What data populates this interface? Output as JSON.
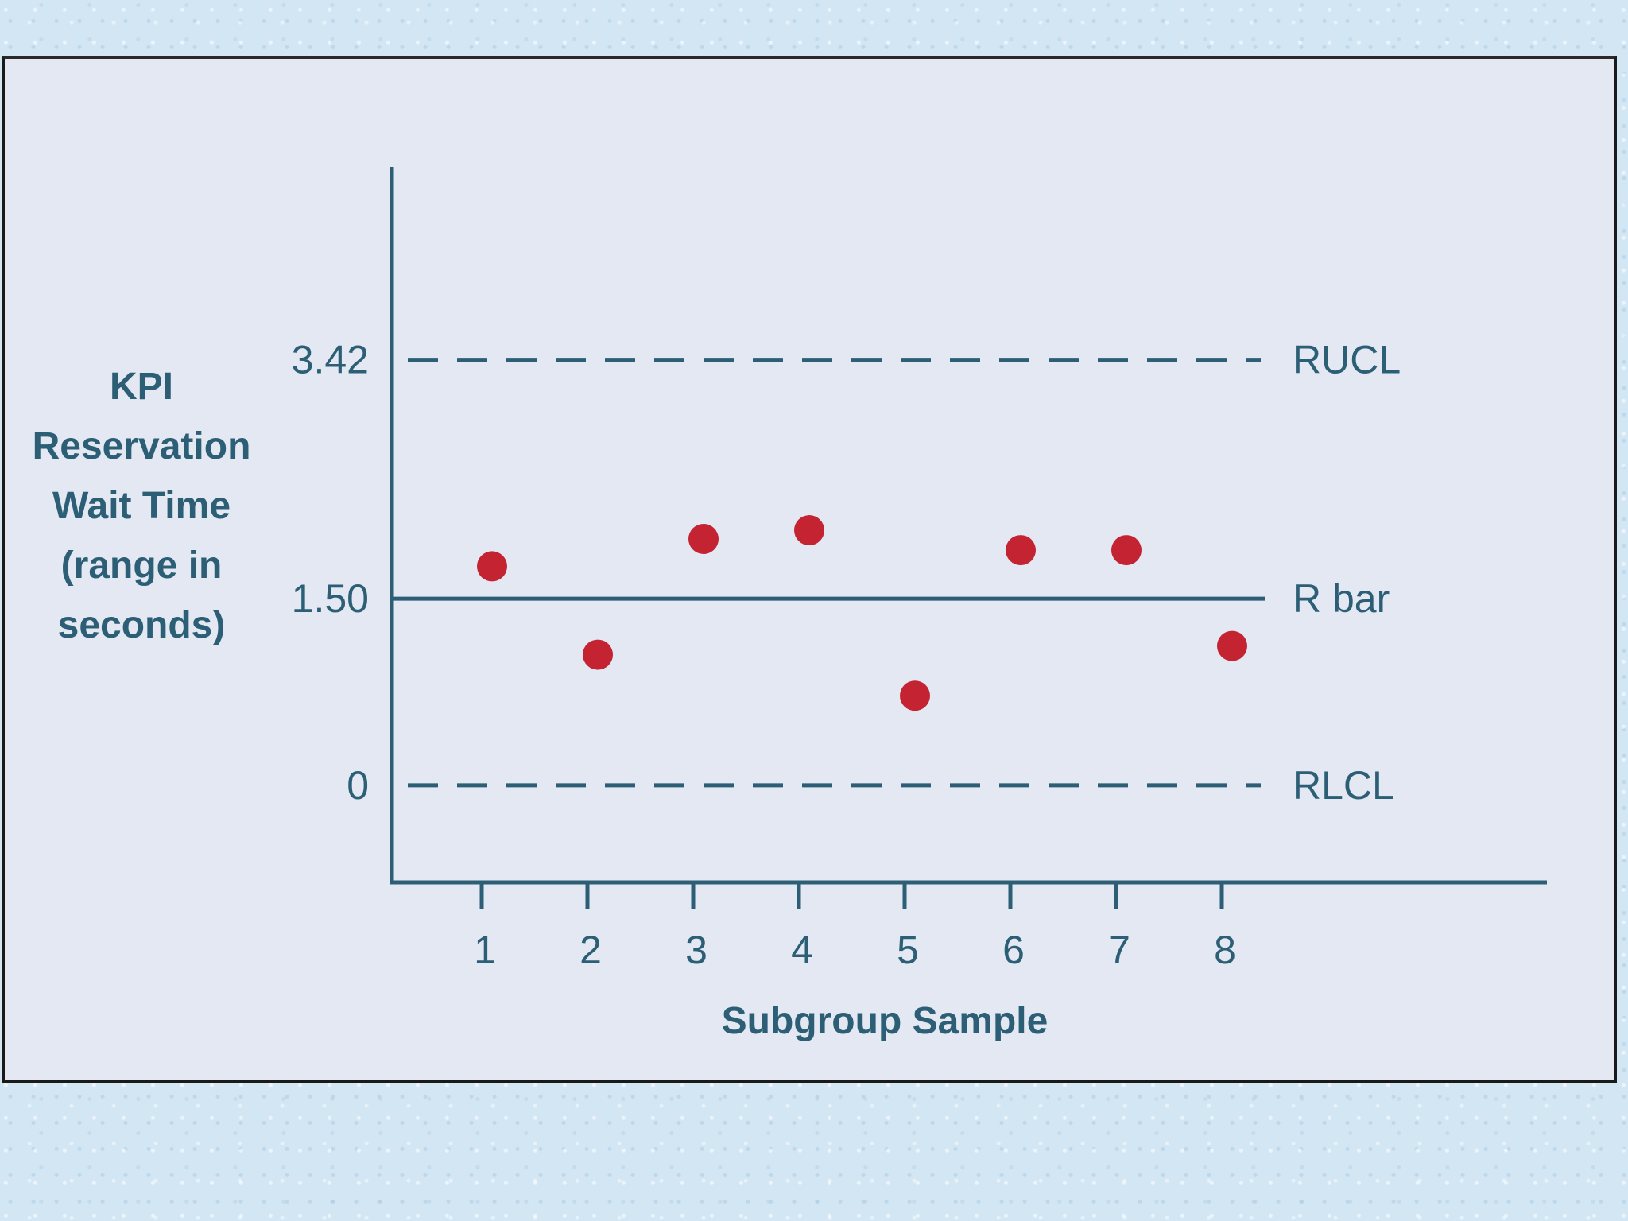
{
  "chart_data": {
    "type": "scatter",
    "title": "",
    "xlabel": "Subgroup Sample",
    "ylabel_lines": [
      "KPI",
      "Reservation",
      "Wait Time",
      "(range in",
      "seconds)"
    ],
    "x_ticks": [
      "1",
      "2",
      "3",
      "4",
      "5",
      "6",
      "7",
      "8"
    ],
    "y_ticks": [
      "0",
      "1.50",
      "3.42"
    ],
    "ylim": [
      -0.78,
      4.97
    ],
    "grid": false,
    "control_lines": [
      {
        "label": "RUCL",
        "value": 3.42,
        "style": "dashed"
      },
      {
        "label": "R bar",
        "value": 1.5,
        "style": "solid"
      },
      {
        "label": "RLCL",
        "value": 0,
        "style": "dashed"
      }
    ],
    "series": [
      {
        "x": [
          1,
          2,
          3,
          4,
          5,
          6,
          7,
          8
        ],
        "y": [
          1.76,
          1.05,
          1.98,
          2.05,
          0.72,
          1.89,
          1.89,
          1.12
        ]
      }
    ],
    "colors": {
      "axis": "#2c5f76",
      "point": "#c42432",
      "panel": "#e3e8f2"
    }
  }
}
